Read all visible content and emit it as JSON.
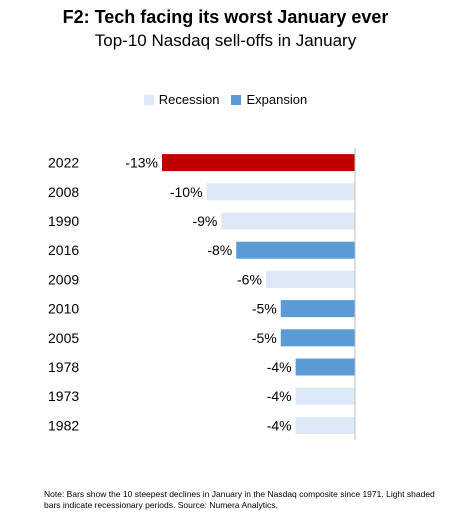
{
  "chart_data": {
    "type": "bar",
    "orientation": "horizontal",
    "title": "F2: Tech facing its worst January ever",
    "subtitle": "Top-10 Nasdaq sell-offs in January",
    "categories": [
      "2022",
      "2008",
      "1990",
      "2016",
      "2009",
      "2010",
      "2005",
      "1978",
      "1973",
      "1982"
    ],
    "values": [
      -13,
      -10,
      -9,
      -8,
      -6,
      -5,
      -5,
      -4,
      -4,
      -4
    ],
    "value_labels": [
      "-13%",
      "-10%",
      "-9%",
      "-8%",
      "-6%",
      "-5%",
      "-5%",
      "-4%",
      "-4%",
      "-4%"
    ],
    "regime": [
      "highlight",
      "recession",
      "recession",
      "expansion",
      "recession",
      "expansion",
      "expansion",
      "expansion",
      "recession",
      "recession"
    ],
    "legend": [
      {
        "label": "Recession",
        "color": "#dde8f6"
      },
      {
        "label": "Expansion",
        "color": "#5b9bd5"
      }
    ],
    "legend_position": "top",
    "colors": {
      "highlight": "#c00000",
      "recession": "#dde8f6",
      "expansion": "#5b9bd5"
    },
    "xlim": [
      -13,
      0
    ],
    "grid": false
  },
  "note": "Note: Bars show the 10 steepest declines in January in the Nasdaq composite since 1971. Light shaded bars indicate recessionary periods. Source: Numera Analytics."
}
